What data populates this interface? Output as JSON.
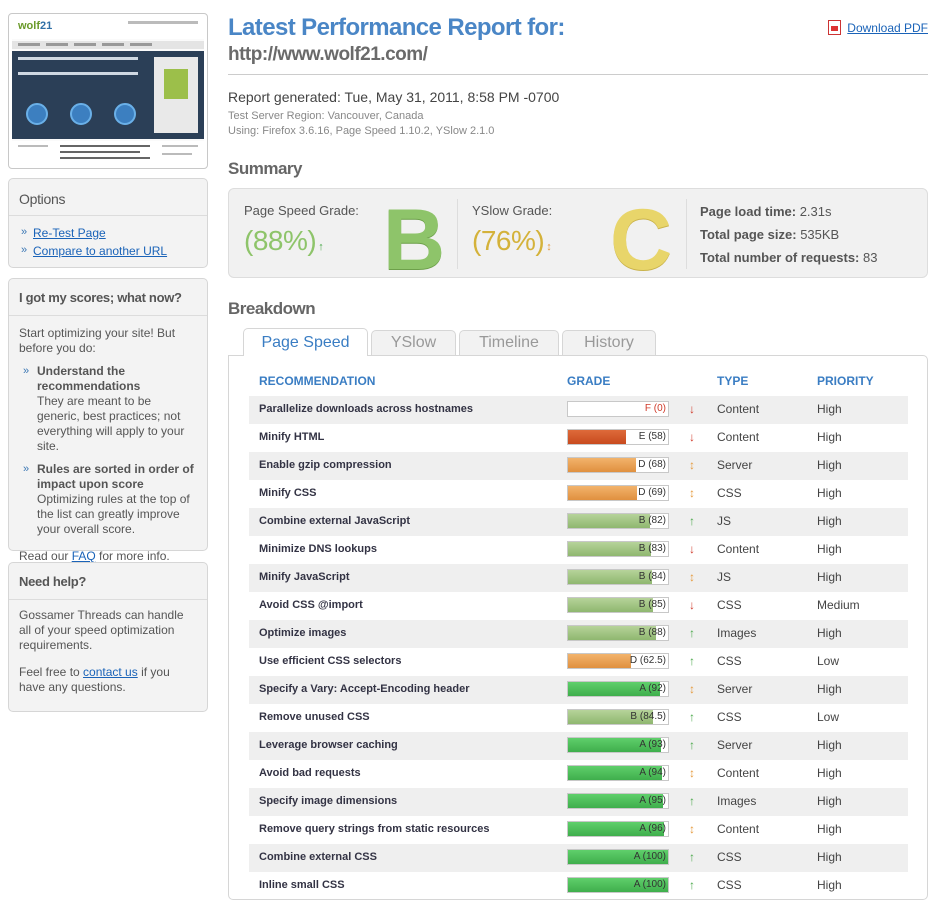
{
  "colors": {
    "accent": "#4a86c6",
    "grade_b": "#8ec46a",
    "grade_c": "#e0d070",
    "yslow_text": "#d4b23a",
    "link": "#1a63b8"
  },
  "thumbnail": {
    "logo_a": "wolf",
    "logo_b": "21"
  },
  "options": {
    "title": "Options",
    "links": [
      "Re-Test Page",
      "Compare to another URL"
    ]
  },
  "scores_help": {
    "title": "I got my scores; what now?",
    "intro": "Start optimizing your site! But before you do:",
    "items": [
      {
        "head": "Understand the recommendations",
        "body": "They are meant to be generic, best practices; not everything will apply to your site."
      },
      {
        "head": "Rules are sorted in order of impact upon score",
        "body": "Optimizing rules at the top of the list can greatly improve your overall score."
      }
    ],
    "faq_pre": "Read our ",
    "faq_link": "FAQ",
    "faq_post": " for more info."
  },
  "need_help": {
    "title": "Need help?",
    "p1": "Gossamer Threads can handle all of your speed optimization requirements.",
    "p2_pre": "Feel free to ",
    "p2_link": "contact us",
    "p2_post": " if you have any questions."
  },
  "header": {
    "title": "Latest Performance Report for:",
    "url": "http://www.wolf21.com/",
    "download_pdf": "Download PDF"
  },
  "report": {
    "generated": "Report generated: Tue, May 31, 2011, 8:58 PM -0700",
    "region": "Test Server Region: Vancouver, Canada",
    "using": "Using: Firefox 3.6.16, Page Speed 1.10.2, YSlow 2.1.0"
  },
  "summary": {
    "heading": "Summary",
    "pagespeed_label": "Page Speed Grade:",
    "pagespeed_pct": "(88%)",
    "pagespeed_letter": "B",
    "yslow_label": "YSlow Grade:",
    "yslow_pct": "(76%)",
    "yslow_letter": "C",
    "load_time_label": "Page load time:",
    "load_time": "2.31s",
    "page_size_label": "Total page size:",
    "page_size": "535KB",
    "requests_label": "Total number of requests:",
    "requests": "83"
  },
  "breakdown": {
    "heading": "Breakdown",
    "tabs": [
      "Page Speed",
      "YSlow",
      "Timeline",
      "History"
    ],
    "columns": [
      "RECOMMENDATION",
      "GRADE",
      "TYPE",
      "PRIORITY"
    ],
    "rows": [
      {
        "name": "Parallelize downloads across hostnames",
        "grade": "F (0)",
        "score": 0,
        "trend": "down",
        "type": "Content",
        "priority": "High"
      },
      {
        "name": "Minify HTML",
        "grade": "E (58)",
        "score": 58,
        "trend": "down",
        "type": "Content",
        "priority": "High"
      },
      {
        "name": "Enable gzip compression",
        "grade": "D (68)",
        "score": 68,
        "trend": "flat",
        "type": "Server",
        "priority": "High"
      },
      {
        "name": "Minify CSS",
        "grade": "D (69)",
        "score": 69,
        "trend": "flat",
        "type": "CSS",
        "priority": "High"
      },
      {
        "name": "Combine external JavaScript",
        "grade": "B (82)",
        "score": 82,
        "trend": "up",
        "type": "JS",
        "priority": "High"
      },
      {
        "name": "Minimize DNS lookups",
        "grade": "B (83)",
        "score": 83,
        "trend": "down",
        "type": "Content",
        "priority": "High"
      },
      {
        "name": "Minify JavaScript",
        "grade": "B (84)",
        "score": 84,
        "trend": "flat",
        "type": "JS",
        "priority": "High"
      },
      {
        "name": "Avoid CSS @import",
        "grade": "B (85)",
        "score": 85,
        "trend": "down",
        "type": "CSS",
        "priority": "Medium"
      },
      {
        "name": "Optimize images",
        "grade": "B (88)",
        "score": 88,
        "trend": "up",
        "type": "Images",
        "priority": "High"
      },
      {
        "name": "Use efficient CSS selectors",
        "grade": "D (62.5)",
        "score": 62.5,
        "trend": "up",
        "type": "CSS",
        "priority": "Low"
      },
      {
        "name": "Specify a Vary: Accept-Encoding header",
        "grade": "A (92)",
        "score": 92,
        "trend": "flat",
        "type": "Server",
        "priority": "High"
      },
      {
        "name": "Remove unused CSS",
        "grade": "B (84.5)",
        "score": 84.5,
        "trend": "up",
        "type": "CSS",
        "priority": "Low"
      },
      {
        "name": "Leverage browser caching",
        "grade": "A (93)",
        "score": 93,
        "trend": "up",
        "type": "Server",
        "priority": "High"
      },
      {
        "name": "Avoid bad requests",
        "grade": "A (94)",
        "score": 94,
        "trend": "flat",
        "type": "Content",
        "priority": "High"
      },
      {
        "name": "Specify image dimensions",
        "grade": "A (95)",
        "score": 95,
        "trend": "up",
        "type": "Images",
        "priority": "High"
      },
      {
        "name": "Remove query strings from static resources",
        "grade": "A (96)",
        "score": 96,
        "trend": "flat",
        "type": "Content",
        "priority": "High"
      },
      {
        "name": "Combine external CSS",
        "grade": "A (100)",
        "score": 100,
        "trend": "up",
        "type": "CSS",
        "priority": "High"
      },
      {
        "name": "Inline small CSS",
        "grade": "A (100)",
        "score": 100,
        "trend": "up",
        "type": "CSS",
        "priority": "High"
      }
    ]
  }
}
